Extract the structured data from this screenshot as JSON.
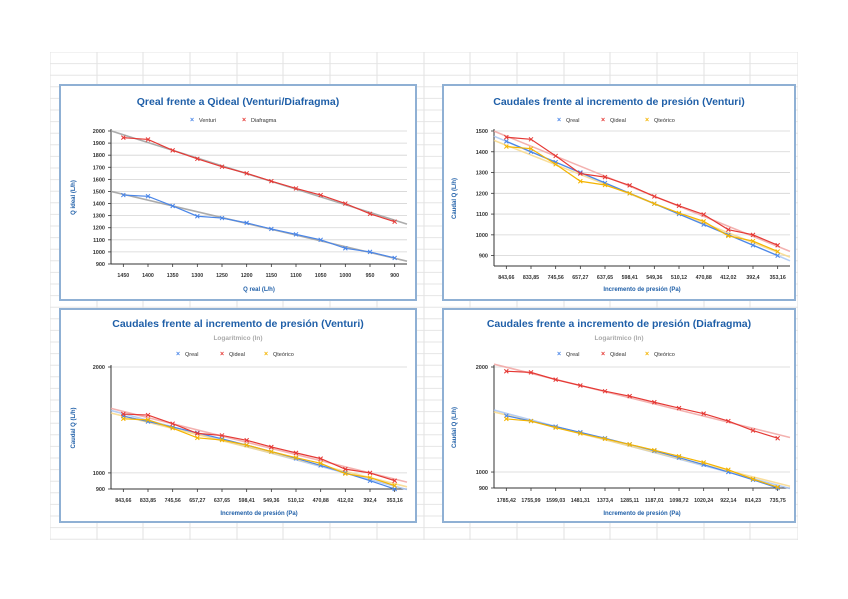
{
  "chart_data": [
    {
      "id": "c1",
      "type": "line",
      "title": "Qreal frente a Qideal (Venturi/Diafragma)",
      "subtitle": "",
      "xlabel": "Q real (L/h)",
      "ylabel": "Q ideal (L/h)",
      "categories": [
        "1450",
        "1400",
        "1350",
        "1300",
        "1250",
        "1200",
        "1150",
        "1100",
        "1050",
        "1000",
        "950",
        "900"
      ],
      "yticks": [
        900,
        1000,
        1100,
        1200,
        1300,
        1400,
        1500,
        1600,
        1700,
        1800,
        1900,
        2000
      ],
      "ylim": [
        900,
        2000
      ],
      "log": false,
      "grid": true,
      "legend": "top",
      "series": [
        {
          "name": "Venturi",
          "color": "#4a86e8",
          "values": [
            1470,
            1460,
            1380,
            1295,
            1280,
            1240,
            1190,
            1145,
            1100,
            1030,
            1000,
            950
          ],
          "trend": "#9e9e9e"
        },
        {
          "name": "Diafragma",
          "color": "#e53935",
          "values": [
            1945,
            1930,
            1840,
            1770,
            1705,
            1650,
            1585,
            1525,
            1470,
            1400,
            1315,
            1250
          ],
          "trend": "#9e9e9e"
        }
      ]
    },
    {
      "id": "c2",
      "type": "line",
      "title": "Caudales frente al incremento de presión (Venturi)",
      "subtitle": "",
      "xlabel": "Incremento de presión (Pa)",
      "ylabel": "Caudal Q (L/h)",
      "categories": [
        "843,66",
        "833,85",
        "745,56",
        "657,27",
        "637,65",
        "598,41",
        "549,36",
        "510,12",
        "470,88",
        "412,02",
        "392,4",
        "353,16"
      ],
      "yticks": [
        900,
        1000,
        1100,
        1200,
        1300,
        1400,
        1500
      ],
      "ylim": [
        850,
        1500
      ],
      "log": false,
      "grid": true,
      "legend": "top",
      "series": [
        {
          "name": "Qreal",
          "color": "#4a86e8",
          "values": [
            1450,
            1400,
            1350,
            1300,
            1250,
            1200,
            1150,
            1100,
            1050,
            1000,
            950,
            900
          ],
          "trend": "#a9c6f5"
        },
        {
          "name": "Qideal",
          "color": "#e53935",
          "values": [
            1470,
            1460,
            1380,
            1295,
            1278,
            1238,
            1185,
            1140,
            1098,
            1025,
            1000,
            950
          ],
          "trend": "#f2a5a3"
        },
        {
          "name": "Qteórico",
          "color": "#f4b400",
          "values": [
            1425,
            1415,
            1340,
            1258,
            1240,
            1200,
            1150,
            1105,
            1065,
            995,
            970,
            920
          ],
          "trend": "#f8d98a"
        }
      ]
    },
    {
      "id": "c3",
      "type": "line",
      "title": "Caudales frente al incremento de presión (Venturi)",
      "subtitle": "Logarítmico (ln)",
      "xlabel": "Incremento de presión (Pa)",
      "ylabel": "Caudal Q (L/h)",
      "categories": [
        "843,66",
        "833,85",
        "745,56",
        "657,27",
        "637,65",
        "598,41",
        "549,36",
        "510,12",
        "470,88",
        "412,02",
        "392,4",
        "353,16"
      ],
      "yticks": [
        900,
        1000,
        2000
      ],
      "ylim": [
        900,
        2000
      ],
      "log": true,
      "grid": true,
      "legend": "top",
      "series": [
        {
          "name": "Qreal",
          "color": "#4a86e8",
          "values": [
            1450,
            1400,
            1350,
            1300,
            1250,
            1200,
            1150,
            1100,
            1050,
            1000,
            950,
            900
          ],
          "trend": "#a9c6f5"
        },
        {
          "name": "Qideal",
          "color": "#e53935",
          "values": [
            1470,
            1460,
            1380,
            1295,
            1278,
            1238,
            1185,
            1140,
            1098,
            1025,
            1000,
            950
          ],
          "trend": "#f2a5a3"
        },
        {
          "name": "Qteórico",
          "color": "#f4b400",
          "values": [
            1425,
            1415,
            1340,
            1258,
            1240,
            1200,
            1150,
            1105,
            1065,
            995,
            970,
            920
          ],
          "trend": "#f8d98a"
        }
      ]
    },
    {
      "id": "c4",
      "type": "line",
      "title": "Caudales frente a incremento de presión (Diafragma)",
      "subtitle": "Logarítmico (ln)",
      "xlabel": "Incremento de presión (Pa)",
      "ylabel": "Caudal Q (L/h)",
      "categories": [
        "1785,42",
        "1755,99",
        "1599,03",
        "1481,31",
        "1373,4",
        "1285,11",
        "1187,01",
        "1098,72",
        "1020,24",
        "922,14",
        "814,23",
        "735,75"
      ],
      "yticks": [
        900,
        1000,
        2000
      ],
      "ylim": [
        900,
        2000
      ],
      "log": true,
      "grid": true,
      "legend": "top",
      "series": [
        {
          "name": "Qreal",
          "color": "#4a86e8",
          "values": [
            1450,
            1400,
            1350,
            1300,
            1250,
            1200,
            1150,
            1100,
            1050,
            1000,
            950,
            900
          ],
          "trend": "#a9c6f5"
        },
        {
          "name": "Qideal",
          "color": "#e53935",
          "values": [
            1945,
            1930,
            1840,
            1770,
            1705,
            1650,
            1585,
            1525,
            1470,
            1400,
            1315,
            1250
          ],
          "trend": "#f2a5a3"
        },
        {
          "name": "Qteórico",
          "color": "#f4b400",
          "values": [
            1420,
            1400,
            1340,
            1290,
            1245,
            1200,
            1155,
            1110,
            1065,
            1015,
            955,
            905
          ],
          "trend": "#f8d98a"
        }
      ]
    }
  ]
}
